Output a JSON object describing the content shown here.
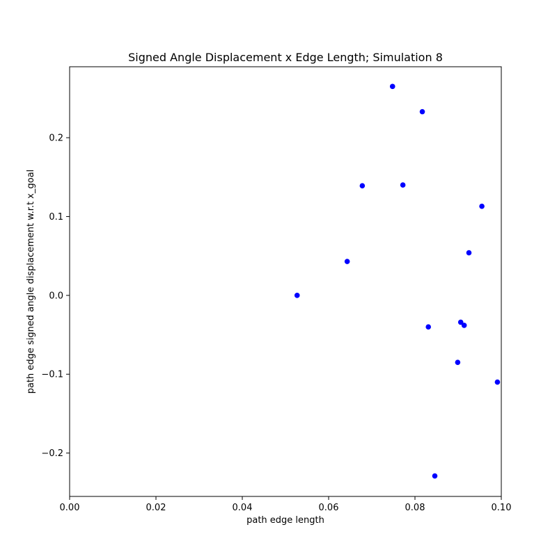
{
  "chart_data": {
    "type": "scatter",
    "title": "Signed Angle Displacement x Edge Length; Simulation 8",
    "xlabel": "path edge length",
    "ylabel": "path edge signed angle displacement w.r.t x_goal",
    "xlim": [
      0.0,
      0.1
    ],
    "ylim": [
      -0.255,
      0.29
    ],
    "xticks": [
      0.0,
      0.02,
      0.04,
      0.06,
      0.08,
      0.1
    ],
    "xtick_labels": [
      "0.00",
      "0.02",
      "0.04",
      "0.06",
      "0.08",
      "0.10"
    ],
    "yticks": [
      -0.2,
      -0.1,
      0.0,
      0.1,
      0.2
    ],
    "ytick_labels": [
      "−0.2",
      "−0.1",
      "0.0",
      "0.1",
      "0.2"
    ],
    "grid": false,
    "marker_color": "#0000ff",
    "series": [
      {
        "x": [
          0.0748,
          0.0817,
          0.0678,
          0.0772,
          0.0955,
          0.0925,
          0.0643,
          0.0527,
          0.0831,
          0.0906,
          0.0914,
          0.0899,
          0.0991,
          0.0846
        ],
        "y": [
          0.265,
          0.233,
          0.139,
          0.14,
          0.113,
          0.054,
          0.043,
          0.0,
          -0.04,
          -0.034,
          -0.038,
          -0.085,
          -0.11,
          -0.229
        ]
      }
    ]
  }
}
